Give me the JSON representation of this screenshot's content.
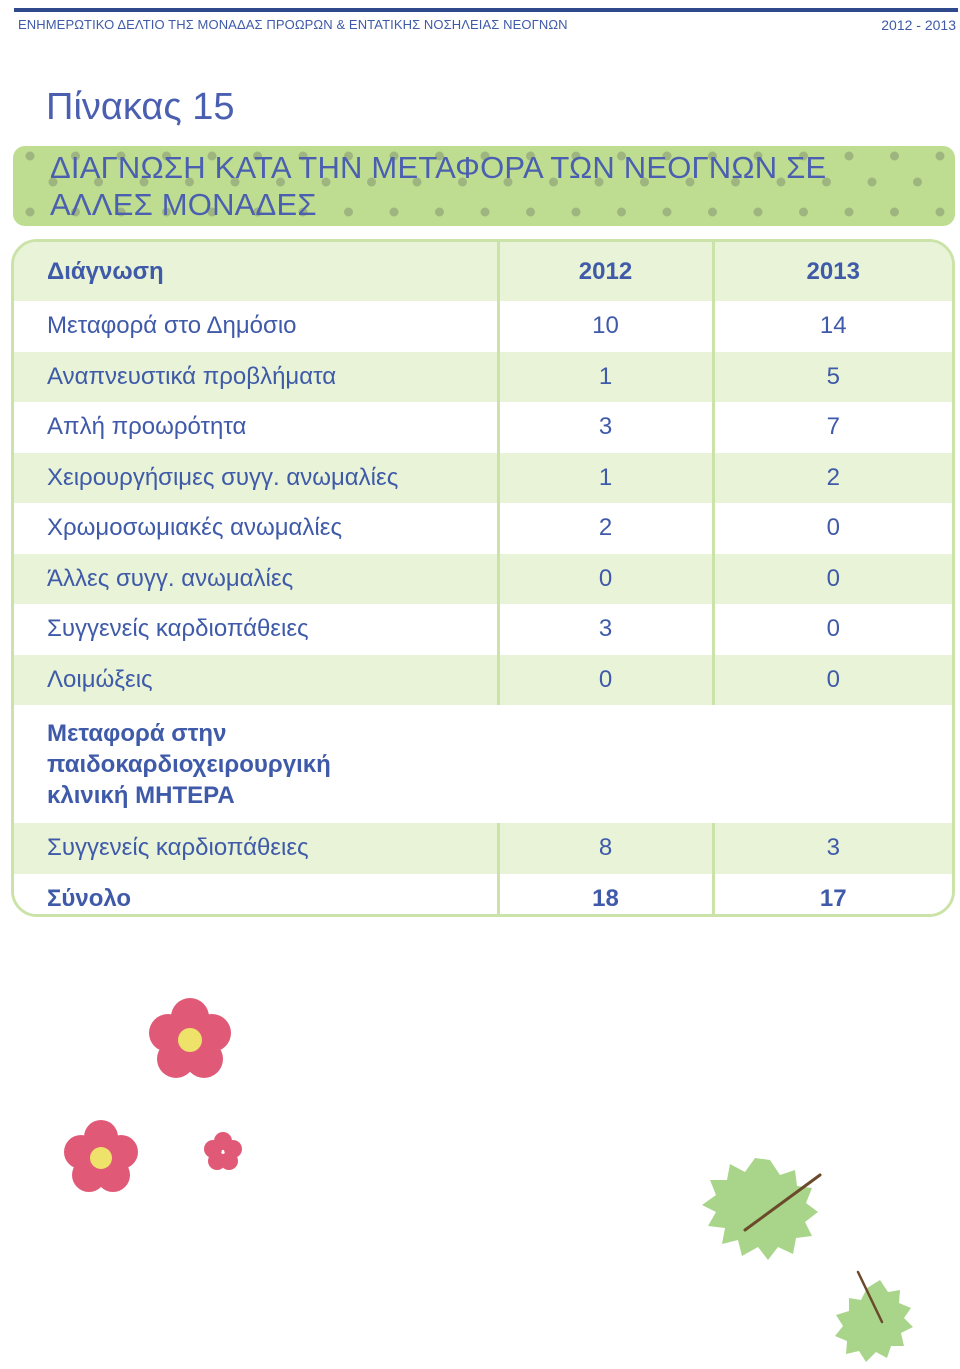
{
  "header": {
    "left_text": "ΕΝΗΜΕΡΩΤΙΚΟ ΔΕΛΤΙΟ ΤΗΣ ΜΟΝΑΔΑΣ ΠΡΟΩΡΩΝ & ΕΝΤΑΤΙΚΗΣ ΝΟΣΗΛΕΙΑΣ ΝΕΟΓΝΩΝ",
    "right_text": "2012 - 2013"
  },
  "table_number": "Πίνακας 15",
  "table_title": "ΔΙΑΓΝΩΣΗ ΚΑΤΑ ΤΗΝ ΜΕΤΑΦΟΡΑ ΤΩΝ ΝΕΟΓΝΩΝ ΣΕ ΑΛΛΕΣ ΜΟΝΑΔΕΣ",
  "columns": [
    "Διάγνωση",
    "2012",
    "2013"
  ],
  "rows": [
    {
      "label": "Μεταφορά στο Δημόσιο",
      "y2012": "10",
      "y2013": "14"
    },
    {
      "label": "Αναπνευστικά προβλήματα",
      "y2012": "1",
      "y2013": "5"
    },
    {
      "label": "Απλή προωρότητα",
      "y2012": "3",
      "y2013": "7"
    },
    {
      "label": "Χειρουργήσιμες συγγ. ανωμαλίες",
      "y2012": "1",
      "y2013": "2"
    },
    {
      "label": "Χρωμοσωμιακές ανωμαλίες",
      "y2012": "2",
      "y2013": "0"
    },
    {
      "label": "Άλλες συγγ. ανωμαλίες",
      "y2012": "0",
      "y2013": "0"
    },
    {
      "label": "Συγγενείς καρδιοπάθειες",
      "y2012": "3",
      "y2013": "0"
    },
    {
      "label": "Λοιμώξεις",
      "y2012": "0",
      "y2013": "0"
    }
  ],
  "section": {
    "title_lines": [
      "Μεταφορά στην",
      "παιδοκαρδιοχειρουργική",
      "κλινική ΜΗΤΕΡΑ"
    ],
    "rows": [
      {
        "label": "Συγγενείς καρδιοπάθειες",
        "y2012": "8",
        "y2013": "3"
      }
    ]
  },
  "total": {
    "label": "Σύνολο",
    "y2012": "18",
    "y2013": "17"
  },
  "colors": {
    "text": "#3f5aa8",
    "banner": "#bedd91",
    "row_green": "#e8f3d8",
    "flower": "#e05a77",
    "leaf": "#a9d58a"
  }
}
